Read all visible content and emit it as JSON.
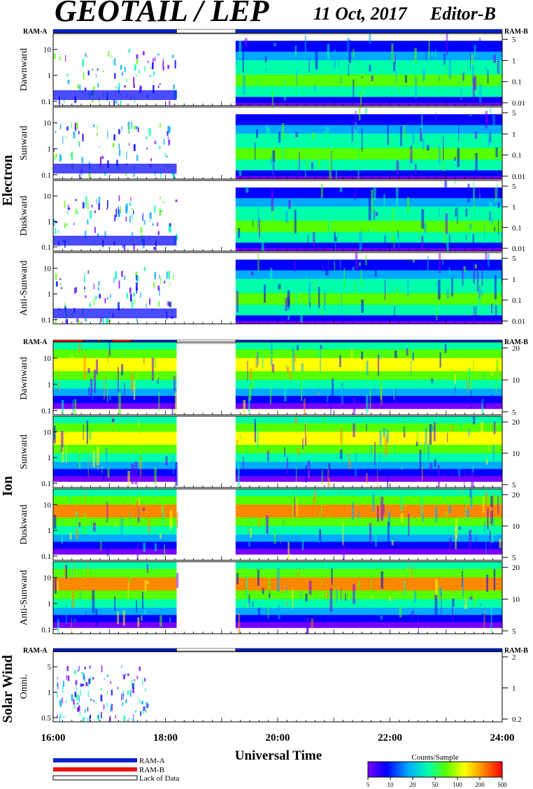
{
  "header": {
    "title": "GEOTAIL / LEP",
    "date": "11 Oct, 2017",
    "editor": "Editor-B"
  },
  "ram_labels": {
    "a": "RAM-A",
    "b": "RAM-B"
  },
  "groups": [
    {
      "key": "electron",
      "label": "Electron",
      "panels": [
        "Dawnward",
        "Sunward",
        "Duskward",
        "Anti-Sunward"
      ],
      "left_ticks": [
        "10",
        "1",
        "0.1"
      ],
      "right_ticks": [
        "5",
        "1",
        "0.1",
        "0.01"
      ],
      "mode_bar": [
        {
          "from": 16.0,
          "to": 18.2,
          "mode": "RAM-A"
        },
        {
          "from": 18.2,
          "to": 19.25,
          "mode": "Lack of Data"
        },
        {
          "from": 19.25,
          "to": 24.0,
          "mode": "RAM-A"
        }
      ]
    },
    {
      "key": "ion",
      "label": "Ion",
      "panels": [
        "Dawnward",
        "Sunward",
        "Duskward",
        "Anti-Sunward"
      ],
      "left_ticks": [
        "10",
        "1",
        "0.1"
      ],
      "right_ticks": [
        "20",
        "10",
        "5"
      ],
      "mode_bar": [
        {
          "from": 16.0,
          "to": 16.55,
          "mode": "RAM-B"
        },
        {
          "from": 16.55,
          "to": 16.8,
          "mode": "RAM-A"
        },
        {
          "from": 16.8,
          "to": 16.85,
          "mode": "RAM-B"
        },
        {
          "from": 16.85,
          "to": 17.05,
          "mode": "RAM-A"
        },
        {
          "from": 17.05,
          "to": 17.4,
          "mode": "RAM-B"
        },
        {
          "from": 17.4,
          "to": 18.2,
          "mode": "RAM-A"
        },
        {
          "from": 18.2,
          "to": 19.25,
          "mode": "Lack of Data"
        },
        {
          "from": 19.25,
          "to": 24.0,
          "mode": "RAM-A"
        }
      ]
    },
    {
      "key": "solar",
      "label": "Solar Wind",
      "panels": [
        "Omni."
      ],
      "left_ticks": [
        "5",
        "1",
        "0.5"
      ],
      "right_ticks": [
        "2",
        "1",
        "0.2"
      ],
      "mode_bar": [
        {
          "from": 16.0,
          "to": 18.2,
          "mode": "RAM-A"
        },
        {
          "from": 18.2,
          "to": 19.25,
          "mode": "Lack of Data"
        },
        {
          "from": 19.25,
          "to": 24.0,
          "mode": "RAM-A"
        }
      ]
    }
  ],
  "chart_data": {
    "type": "heatmap",
    "title": "GEOTAIL / LEP",
    "xlabel": "Universal Time",
    "x_ticks": [
      "16:00",
      "18:00",
      "20:00",
      "22:00",
      "24:00"
    ],
    "xlim_hours": [
      16,
      24
    ],
    "data_gap_hours": [
      18.2,
      19.25
    ],
    "colorbar": {
      "label": "Counts/Sample",
      "ticks": [
        "5",
        "10",
        "20",
        "50",
        "100",
        "200",
        "500"
      ],
      "colors": [
        "#7700ff",
        "#0000ff",
        "#00aaff",
        "#00ffaa",
        "#55ff00",
        "#ffff00",
        "#ff8800",
        "#ff0000"
      ]
    },
    "legend": [
      {
        "label": "RAM-A",
        "color": "#0022cc"
      },
      {
        "label": "RAM-B",
        "color": "#ee1111"
      },
      {
        "label": "Lack of Data",
        "color": "#ffffff"
      }
    ]
  }
}
